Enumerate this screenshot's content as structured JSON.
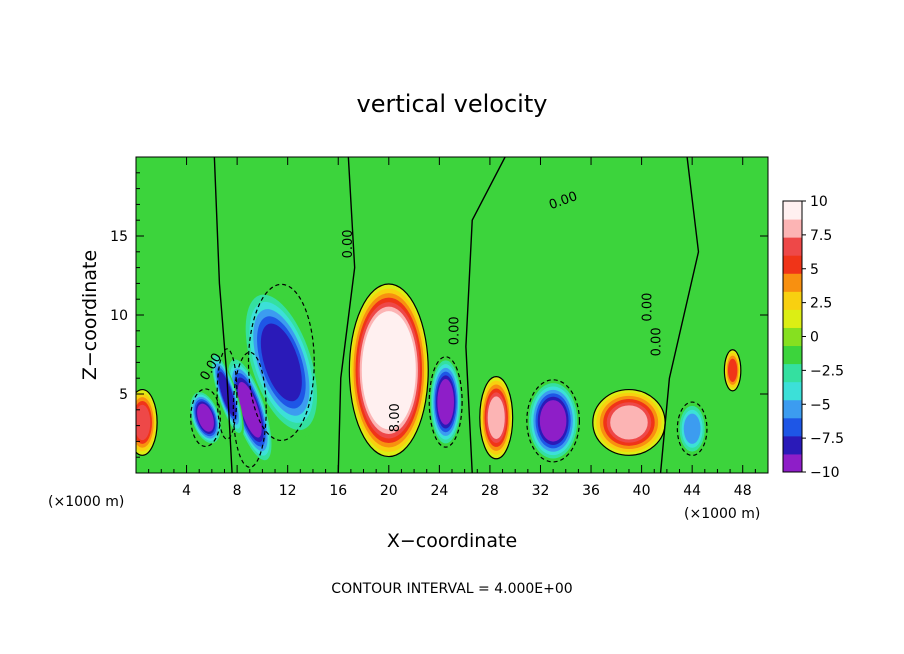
{
  "chart_data": {
    "type": "heatmap",
    "title": "vertical velocity",
    "xlabel": "X−coordinate",
    "ylabel": "Z−coordinate",
    "x_unit": "(×1000 m)",
    "y_unit": "(×1000 m)",
    "xlim": [
      0,
      50
    ],
    "ylim": [
      0,
      20
    ],
    "x_ticks": [
      4,
      8,
      12,
      16,
      20,
      24,
      28,
      32,
      36,
      40,
      44,
      48
    ],
    "y_ticks": [
      5,
      10,
      15
    ],
    "colorbar": {
      "range": [
        -10,
        10
      ],
      "ticks": [
        "10",
        "7.5",
        "5",
        "2.5",
        "0",
        "−2.5",
        "−5",
        "−7.5",
        "−10"
      ],
      "tick_values": [
        10,
        7.5,
        5,
        2.5,
        0,
        -2.5,
        -5,
        -7.5,
        -10
      ],
      "colors": [
        "#8e1ec8",
        "#2a1ab8",
        "#1e56e6",
        "#3c9cf0",
        "#3ce0d8",
        "#34e0a0",
        "#3cd43c",
        "#86e020",
        "#dcee14",
        "#f8d010",
        "#f89010",
        "#f03418",
        "#ee4848",
        "#fcb4b4",
        "#fff0f0"
      ]
    },
    "contour_labels": [
      "0.00",
      "0.00",
      "0.00",
      "0.00",
      "0.00",
      "0.00",
      "8.00"
    ],
    "contour_interval_text": "CONTOUR INTERVAL = 4.000E+00",
    "features": [
      {
        "x": 20,
        "z": 6.5,
        "w": 12,
        "kind": "updraft"
      },
      {
        "x": 28.5,
        "z": 3.5,
        "w": 6,
        "kind": "updraft"
      },
      {
        "x": 39,
        "z": 3.2,
        "w": 6,
        "kind": "updraft"
      },
      {
        "x": 0.5,
        "z": 3.2,
        "w": 5,
        "kind": "updraft"
      },
      {
        "x": 47.2,
        "z": 6.5,
        "w": 4,
        "kind": "updraft"
      },
      {
        "x": 11.5,
        "z": 7,
        "w": -6,
        "kind": "downdraft"
      },
      {
        "x": 9,
        "z": 4,
        "w": -7,
        "kind": "downdraft"
      },
      {
        "x": 5.5,
        "z": 3.5,
        "w": -7,
        "kind": "downdraft"
      },
      {
        "x": 7.2,
        "z": 5,
        "w": -6,
        "kind": "downdraft"
      },
      {
        "x": 24.5,
        "z": 4.5,
        "w": -7,
        "kind": "downdraft"
      },
      {
        "x": 33,
        "z": 3.3,
        "w": -7,
        "kind": "downdraft"
      },
      {
        "x": 44,
        "z": 2.8,
        "w": -4,
        "kind": "downdraft"
      }
    ]
  }
}
